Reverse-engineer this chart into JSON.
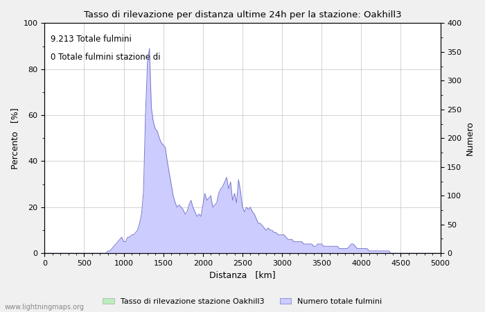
{
  "title": "Tasso di rilevazione per distanza ultime 24h per la stazione: Oakhill3",
  "xlabel": "Distanza   [km]",
  "ylabel_left": "Percento   [%]",
  "ylabel_right": "Numero",
  "annotation_line1": "9.213 Totale fulmini",
  "annotation_line2": "0 Totale fulmini stazione di",
  "xlim": [
    0,
    5000
  ],
  "ylim_left": [
    0,
    100
  ],
  "ylim_right": [
    0,
    400
  ],
  "xticks": [
    0,
    500,
    1000,
    1500,
    2000,
    2500,
    3000,
    3500,
    4000,
    4500,
    5000
  ],
  "yticks_left": [
    0,
    20,
    40,
    60,
    80,
    100
  ],
  "yticks_right": [
    0,
    50,
    100,
    150,
    200,
    250,
    300,
    350,
    400
  ],
  "legend_label_green": "Tasso di rilevazione stazione Oakhill3",
  "legend_label_blue": "Numero totale fulmini",
  "fill_color_blue": "#ccccff",
  "line_color_blue": "#7777cc",
  "fill_color_green": "#bbeebb",
  "watermark": "www.lightningmaps.org",
  "background_color": "#f0f0f0",
  "plot_bg_color": "#ffffff",
  "grid_color": "#cccccc",
  "dist_values": [
    0,
    25,
    50,
    75,
    100,
    125,
    150,
    175,
    200,
    225,
    250,
    275,
    300,
    325,
    350,
    375,
    400,
    425,
    450,
    475,
    500,
    525,
    550,
    575,
    600,
    625,
    650,
    675,
    700,
    725,
    750,
    775,
    800,
    825,
    850,
    875,
    900,
    925,
    950,
    975,
    1000,
    1025,
    1050,
    1075,
    1100,
    1125,
    1150,
    1175,
    1200,
    1225,
    1250,
    1275,
    1300,
    1325,
    1350,
    1375,
    1400,
    1425,
    1450,
    1475,
    1500,
    1525,
    1550,
    1575,
    1600,
    1625,
    1650,
    1675,
    1700,
    1725,
    1750,
    1775,
    1800,
    1825,
    1850,
    1875,
    1900,
    1925,
    1950,
    1975,
    2000,
    2025,
    2050,
    2075,
    2100,
    2125,
    2150,
    2175,
    2200,
    2225,
    2250,
    2275,
    2300,
    2325,
    2350,
    2375,
    2400,
    2425,
    2450,
    2475,
    2500,
    2525,
    2550,
    2575,
    2600,
    2625,
    2650,
    2675,
    2700,
    2725,
    2750,
    2775,
    2800,
    2825,
    2850,
    2875,
    2900,
    2925,
    2950,
    2975,
    3000,
    3025,
    3050,
    3075,
    3100,
    3125,
    3150,
    3175,
    3200,
    3225,
    3250,
    3275,
    3300,
    3325,
    3350,
    3375,
    3400,
    3425,
    3450,
    3475,
    3500,
    3525,
    3550,
    3575,
    3600,
    3625,
    3650,
    3675,
    3700,
    3725,
    3750,
    3775,
    3800,
    3825,
    3850,
    3875,
    3900,
    3925,
    3950,
    3975,
    4000,
    4025,
    4050,
    4075,
    4100,
    4125,
    4150,
    4175,
    4200,
    4225,
    4250,
    4275,
    4300,
    4325,
    4350,
    4375,
    4400,
    4425,
    4450,
    4475,
    4500,
    4525,
    4550,
    4575,
    4600,
    4625,
    4650,
    4675,
    4700,
    4725,
    4750,
    4775,
    4800,
    4825,
    4850,
    4875,
    4900,
    4925,
    4950,
    4975,
    5000
  ],
  "num_pct_values": [
    0,
    0,
    0,
    0,
    0,
    0,
    0,
    0,
    0,
    0,
    0,
    0,
    0,
    0,
    0,
    0,
    0,
    0,
    0,
    0,
    0,
    0,
    0,
    0,
    0,
    0,
    0,
    0,
    0,
    0,
    0,
    0,
    1,
    1,
    2,
    3,
    4,
    5,
    6,
    7,
    5,
    5,
    7,
    7,
    8,
    8,
    9,
    10,
    13,
    17,
    27,
    60,
    83,
    89,
    63,
    57,
    54,
    53,
    50,
    48,
    47,
    46,
    40,
    35,
    30,
    25,
    22,
    20,
    21,
    20,
    19,
    17,
    18,
    21,
    23,
    20,
    18,
    16,
    17,
    16,
    21,
    26,
    23,
    24,
    25,
    20,
    21,
    22,
    26,
    28,
    29,
    31,
    33,
    28,
    31,
    23,
    26,
    22,
    32,
    27,
    20,
    18,
    20,
    19,
    20,
    18,
    17,
    15,
    13,
    13,
    12,
    11,
    10,
    11,
    10,
    10,
    9,
    9,
    8,
    8,
    8,
    8,
    7,
    6,
    6,
    6,
    5,
    5,
    5,
    5,
    5,
    4,
    4,
    4,
    4,
    4,
    3,
    3,
    4,
    4,
    4,
    3,
    3,
    3,
    3,
    3,
    3,
    3,
    3,
    2,
    2,
    2,
    2,
    2,
    3,
    4,
    4,
    3,
    2,
    2,
    2,
    2,
    2,
    2,
    1,
    1,
    1,
    1,
    1,
    1,
    1,
    1,
    1,
    1,
    1,
    0,
    0,
    0,
    0,
    0,
    0,
    0,
    0,
    0,
    0,
    0,
    0,
    0,
    0,
    0,
    0,
    0,
    0,
    0,
    0,
    0,
    0,
    0,
    0,
    0,
    0
  ],
  "pct_values": [
    0,
    0,
    0,
    0,
    0,
    0,
    0,
    0,
    0,
    0,
    0,
    0,
    0,
    0,
    0,
    0,
    0,
    0,
    0,
    0,
    0,
    0,
    0,
    0,
    0,
    0,
    0,
    0,
    0,
    0,
    0,
    0,
    0,
    0,
    0,
    0,
    0,
    0,
    0,
    0,
    0,
    0,
    0,
    0,
    0,
    0,
    0,
    0,
    0,
    0,
    0,
    0,
    0,
    0,
    0,
    0,
    0,
    0,
    0,
    0,
    0,
    0,
    0,
    0,
    0,
    0,
    0,
    0,
    0,
    0,
    0,
    0,
    0,
    0,
    0,
    0,
    0,
    0,
    0,
    0,
    0,
    0,
    0,
    0,
    0,
    0,
    0,
    0,
    0,
    0,
    0,
    0,
    0,
    0,
    0,
    0,
    0,
    0,
    0,
    0,
    0,
    0,
    0,
    0,
    0,
    0,
    0,
    0,
    0,
    0,
    0,
    0,
    0,
    0,
    0,
    0,
    0,
    0,
    0,
    0,
    0,
    0,
    0,
    0,
    0,
    0,
    0,
    0,
    0,
    0,
    0,
    0,
    0,
    0,
    0,
    0,
    0,
    0,
    0,
    0,
    0,
    0,
    0,
    0,
    0,
    0,
    0,
    0,
    0,
    0,
    0,
    0,
    0,
    0,
    0,
    0,
    0,
    0,
    0,
    0,
    0,
    0,
    0,
    0,
    0,
    0,
    0,
    0,
    0,
    0,
    0,
    0,
    0,
    0,
    0,
    0,
    0,
    0,
    0,
    0,
    0,
    0,
    0,
    0,
    0,
    0,
    0,
    0,
    0,
    0,
    0,
    0,
    0,
    0,
    0,
    0,
    0,
    0,
    0,
    0,
    0
  ]
}
